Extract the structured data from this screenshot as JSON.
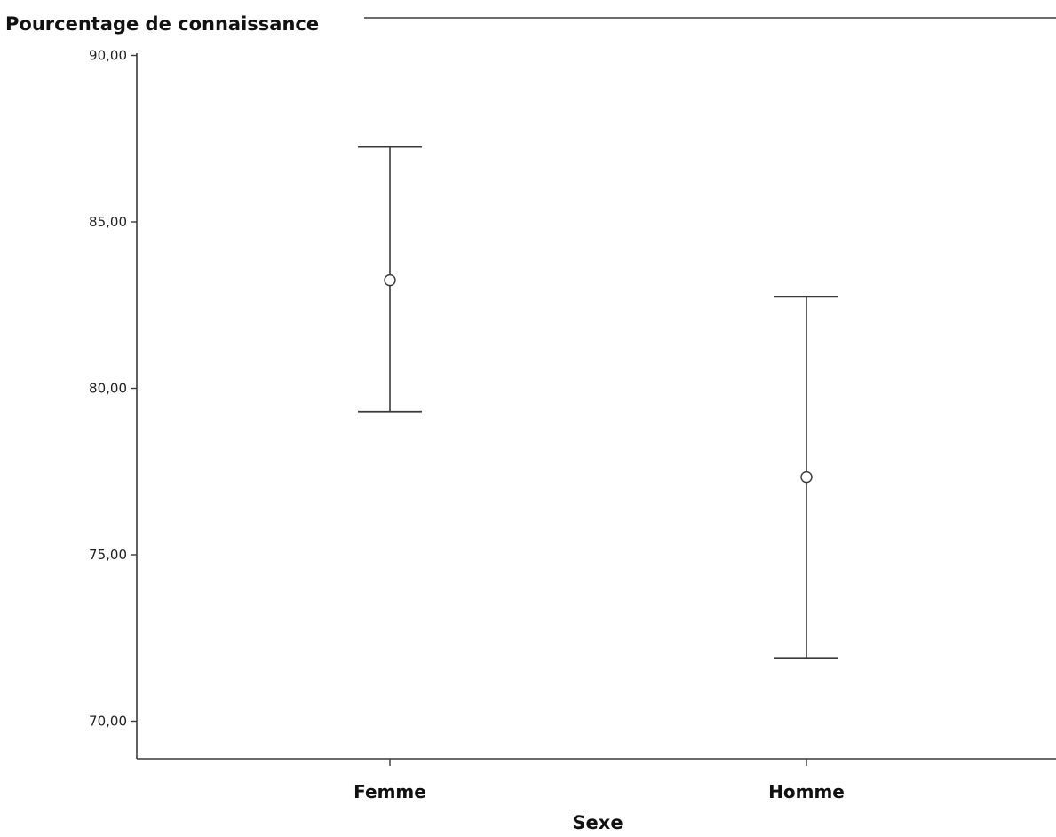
{
  "chart_data": {
    "type": "errorbar",
    "title": "",
    "ylabel": "Pourcentage de connaissance",
    "xlabel": "Sexe",
    "categories": [
      "Femme",
      "Homme"
    ],
    "series": [
      {
        "means": [
          83.25,
          77.33
        ],
        "lower": [
          79.3,
          71.9
        ],
        "upper": [
          87.25,
          82.75
        ]
      }
    ],
    "yticks": [
      "70,00",
      "75,00",
      "80,00",
      "85,00",
      "90,00"
    ],
    "ytick_values": [
      70,
      75,
      80,
      85,
      90
    ],
    "ylim": [
      68.9,
      90.05
    ],
    "grid": false,
    "legend": "none",
    "colors": {
      "line": "#3a3a3a",
      "text": "#111111"
    }
  }
}
